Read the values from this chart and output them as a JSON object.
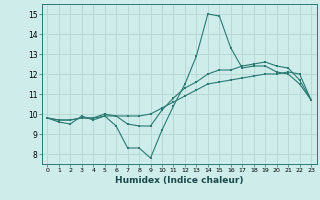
{
  "xlabel": "Humidex (Indice chaleur)",
  "ylabel": "",
  "bg_color": "#ceecea",
  "grid_color": "#b8d8d5",
  "line_color": "#2a7a72",
  "xlim": [
    -0.5,
    23.5
  ],
  "ylim": [
    7.5,
    15.5
  ],
  "xticks": [
    0,
    1,
    2,
    3,
    4,
    5,
    6,
    7,
    8,
    9,
    10,
    11,
    12,
    13,
    14,
    15,
    16,
    17,
    18,
    19,
    20,
    21,
    22,
    23
  ],
  "yticks": [
    8,
    9,
    10,
    11,
    12,
    13,
    14,
    15
  ],
  "line1_x": [
    0,
    1,
    2,
    3,
    4,
    5,
    6,
    7,
    8,
    9,
    10,
    11,
    12,
    13,
    14,
    15,
    16,
    17,
    18,
    19,
    20,
    21,
    22,
    23
  ],
  "line1_y": [
    9.8,
    9.6,
    9.5,
    9.9,
    9.7,
    9.9,
    9.4,
    8.3,
    8.3,
    7.8,
    9.2,
    10.4,
    11.5,
    12.9,
    15.0,
    14.9,
    13.3,
    12.3,
    12.4,
    12.4,
    12.1,
    12.0,
    11.5,
    10.7
  ],
  "line2_x": [
    0,
    1,
    2,
    3,
    4,
    5,
    6,
    7,
    8,
    9,
    10,
    11,
    12,
    13,
    14,
    15,
    16,
    17,
    18,
    19,
    20,
    21,
    22,
    23
  ],
  "line2_y": [
    9.8,
    9.7,
    9.7,
    9.8,
    9.8,
    9.9,
    9.9,
    9.9,
    9.9,
    10.0,
    10.3,
    10.6,
    10.9,
    11.2,
    11.5,
    11.6,
    11.7,
    11.8,
    11.9,
    12.0,
    12.0,
    12.1,
    12.0,
    10.7
  ],
  "line3_x": [
    0,
    1,
    2,
    3,
    4,
    5,
    6,
    7,
    8,
    9,
    10,
    11,
    12,
    13,
    14,
    15,
    16,
    17,
    18,
    19,
    20,
    21,
    22,
    23
  ],
  "line3_y": [
    9.8,
    9.7,
    9.7,
    9.8,
    9.8,
    10.0,
    9.9,
    9.5,
    9.4,
    9.4,
    10.2,
    10.8,
    11.3,
    11.6,
    12.0,
    12.2,
    12.2,
    12.4,
    12.5,
    12.6,
    12.4,
    12.3,
    11.7,
    10.7
  ]
}
